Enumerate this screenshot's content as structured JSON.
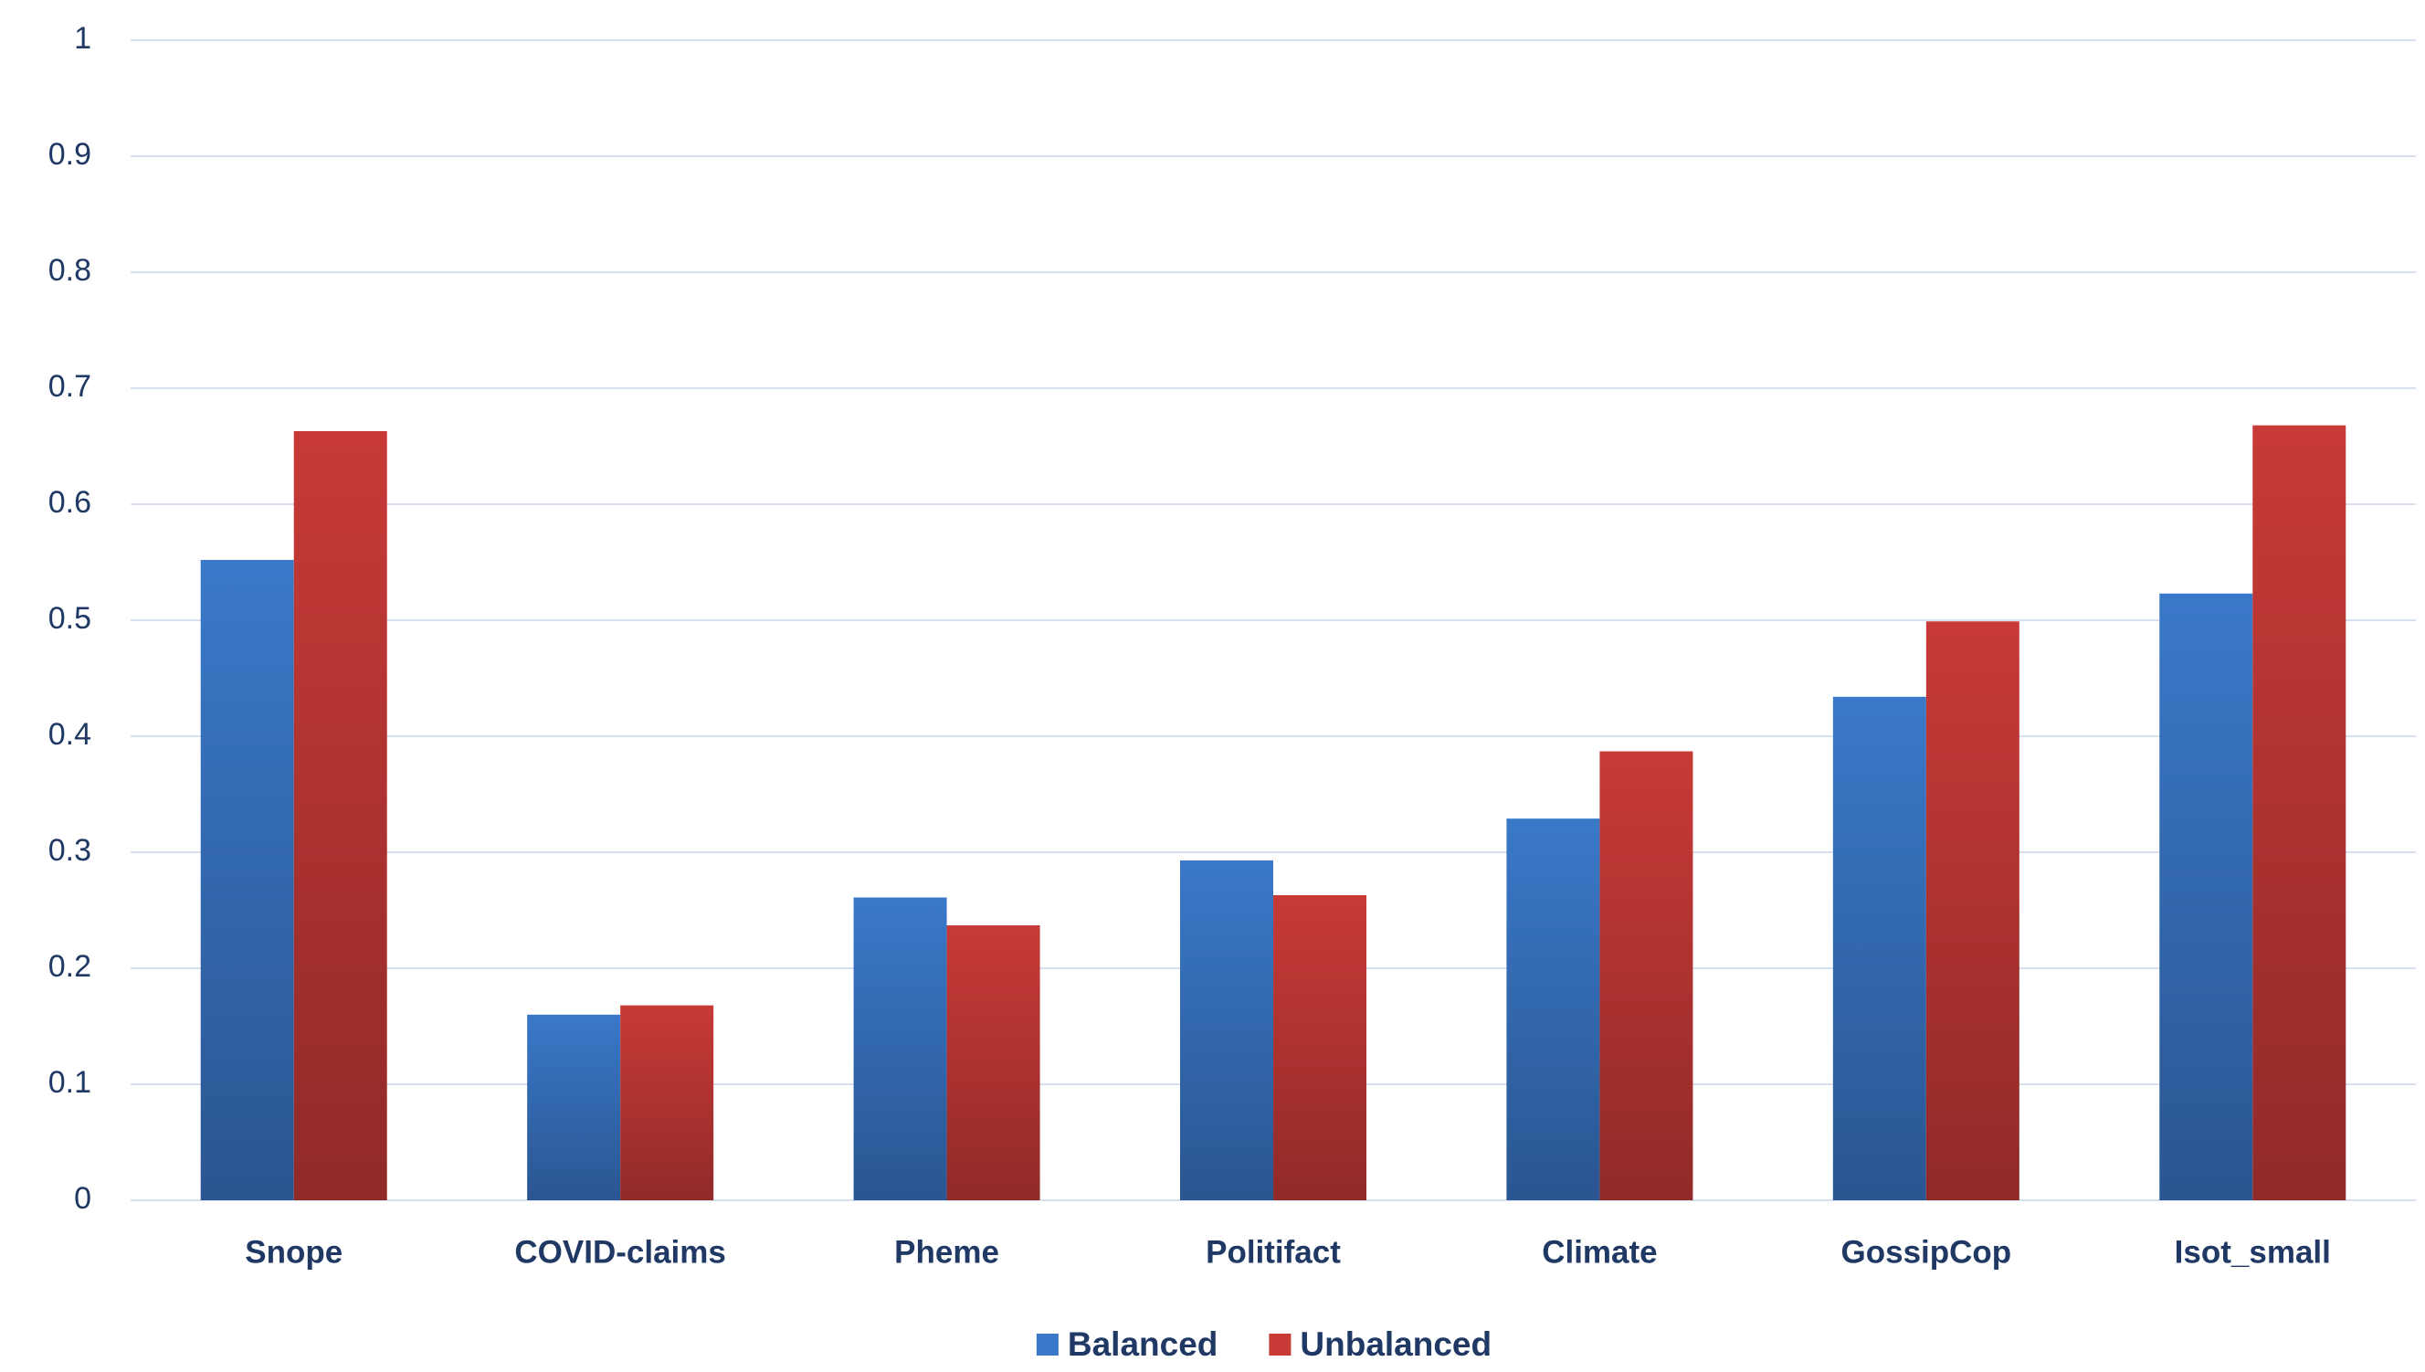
{
  "chart_data": {
    "type": "bar",
    "categories": [
      "Snope",
      "COVID-claims",
      "Pheme",
      "Politifact",
      "Climate",
      "GossipCop",
      "Isot_small"
    ],
    "series": [
      {
        "name": "Balanced",
        "color": "#3a78c9",
        "values": [
          0.552,
          0.16,
          0.261,
          0.293,
          0.329,
          0.434,
          0.523
        ]
      },
      {
        "name": "Unbalanced",
        "color": "#c83a37",
        "values": [
          0.663,
          0.168,
          0.237,
          0.263,
          0.387,
          0.499,
          0.668
        ]
      }
    ],
    "ylim": [
      0,
      1
    ],
    "yticks": [
      0,
      0.1,
      0.2,
      0.3,
      0.4,
      0.5,
      0.6,
      0.7,
      0.8,
      0.9,
      1
    ],
    "grid": true,
    "legend": "bottom"
  }
}
